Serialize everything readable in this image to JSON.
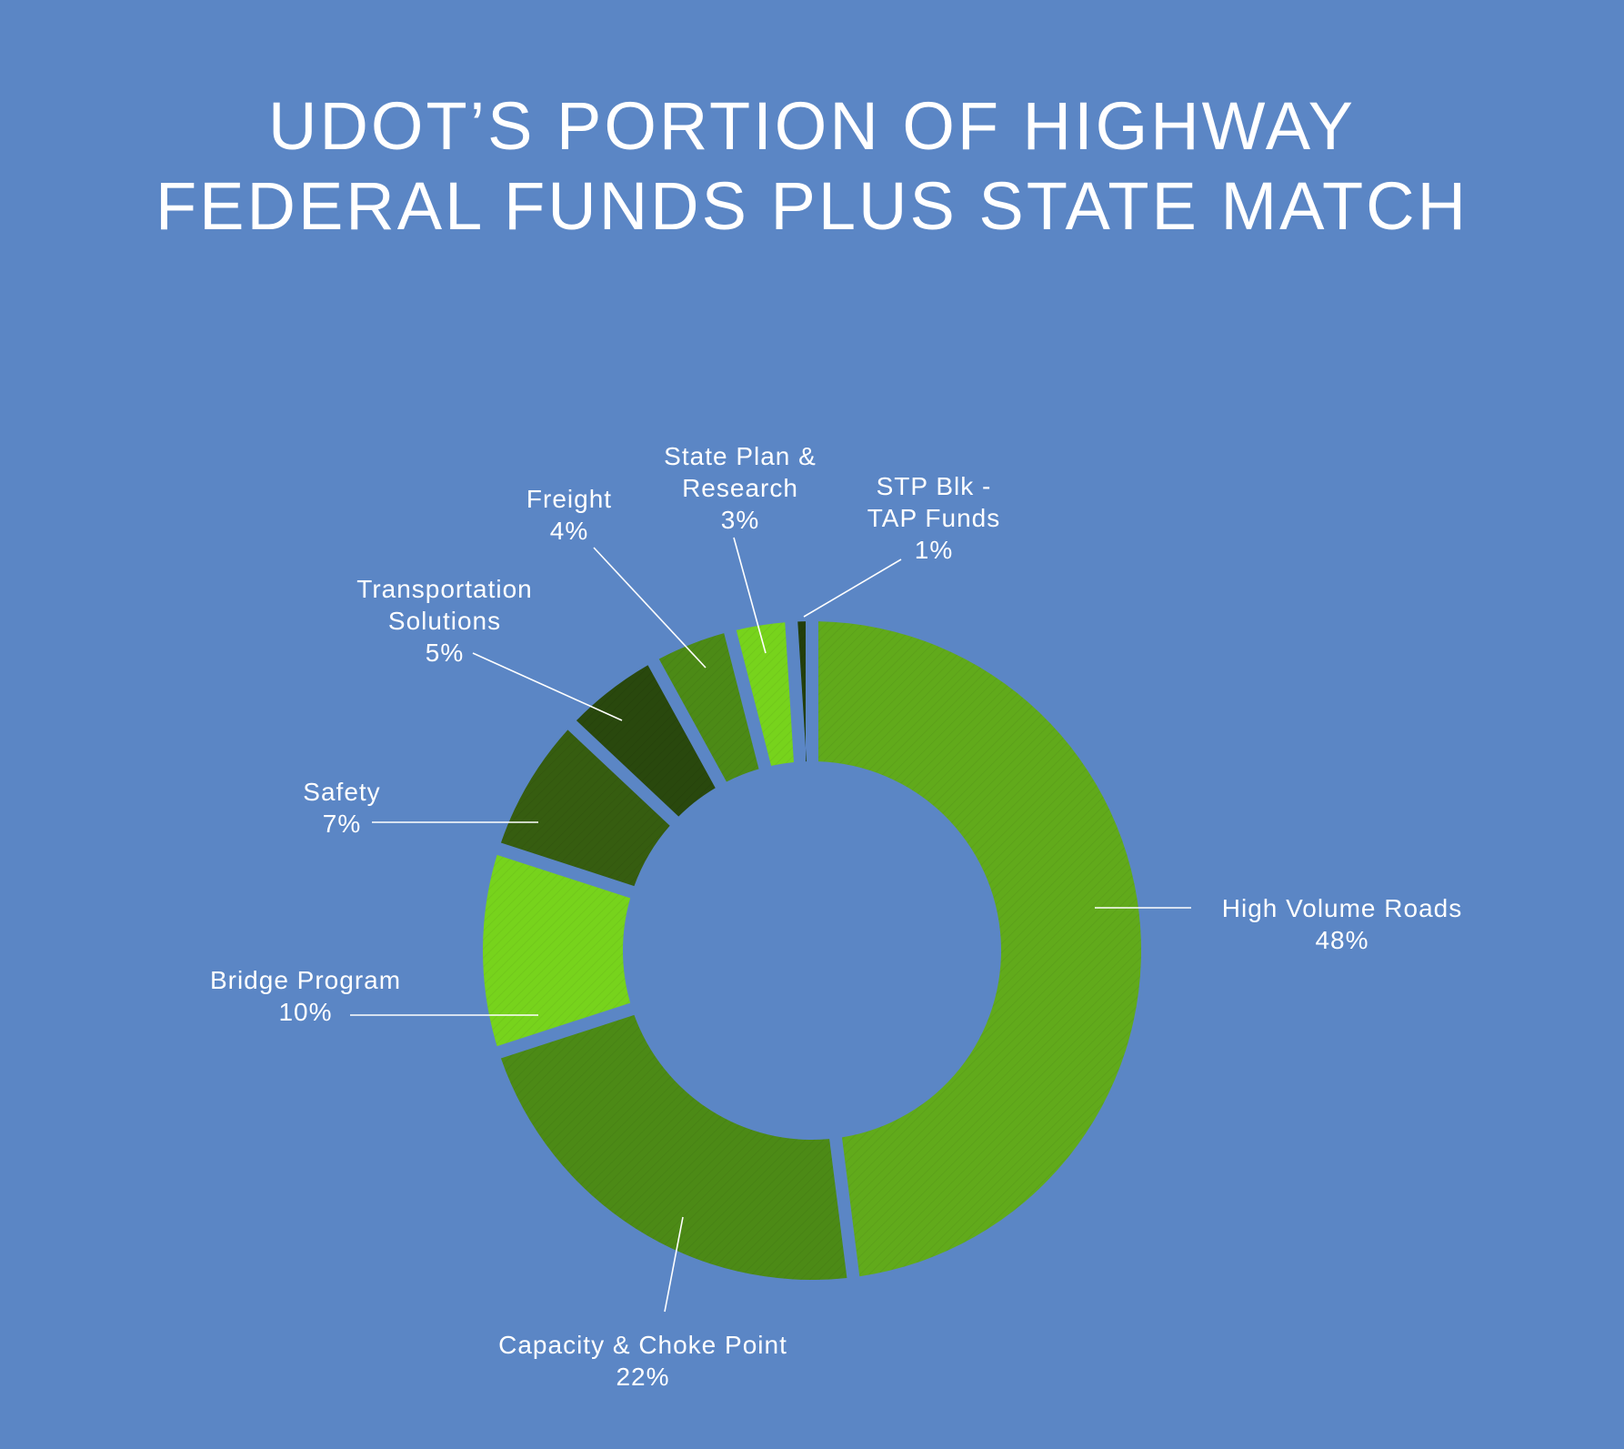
{
  "chart_data": {
    "type": "pie",
    "variant": "donut",
    "title_lines": [
      "UDOT’S PORTION OF HIGHWAY",
      "FEDERAL FUNDS PLUS STATE MATCH"
    ],
    "background": "#5b86c5",
    "unit": "%",
    "slices": [
      {
        "label": "High Volume Roads",
        "label_lines": [
          "High Volume Roads"
        ],
        "value": 48,
        "display": "48%",
        "color": "#61aa1b"
      },
      {
        "label": "Capacity & Choke Point",
        "label_lines": [
          "Capacity & Choke Point"
        ],
        "value": 22,
        "display": "22%",
        "color": "#4c8a16"
      },
      {
        "label": "Bridge Program",
        "label_lines": [
          "Bridge Program"
        ],
        "value": 10,
        "display": "10%",
        "color": "#77d31c"
      },
      {
        "label": "Safety",
        "label_lines": [
          "Safety"
        ],
        "value": 7,
        "display": "7%",
        "color": "#365d10"
      },
      {
        "label": "Transportation Solutions",
        "label_lines": [
          "Transportation",
          "Solutions"
        ],
        "value": 5,
        "display": "5%",
        "color": "#29480d"
      },
      {
        "label": "Freight",
        "label_lines": [
          "Freight"
        ],
        "value": 4,
        "display": "4%",
        "color": "#4c8a16"
      },
      {
        "label": "State Plan & Research",
        "label_lines": [
          "State Plan &",
          "Research"
        ],
        "value": 3,
        "display": "3%",
        "color": "#77d31c"
      },
      {
        "label": "STP Blk - TAP Funds",
        "label_lines": [
          "STP Blk -",
          "TAP Funds"
        ],
        "value": 1,
        "display": "1%",
        "color": "#233f0b"
      }
    ]
  }
}
